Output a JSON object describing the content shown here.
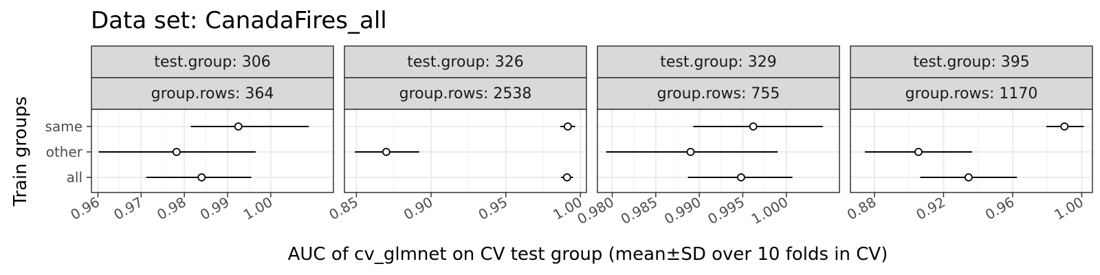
{
  "title": "Data set: CanadaFires_all",
  "xlabel": "AUC of cv_glmnet on CV test group (mean±SD over 10 folds in CV)",
  "ylabel": "Train groups",
  "colors": {
    "strip_fill": "#d9d9d9",
    "strip_border": "#333333",
    "grid_major": "#ebebeb",
    "grid_minor": "#f5f5f5",
    "point": "#000000"
  },
  "chart_data": {
    "type": "scatter",
    "categories": [
      "all",
      "other",
      "same"
    ],
    "panels": [
      {
        "strip_top": "test.group: 306",
        "strip_bottom": "group.rows: 364",
        "xlim": [
          0.9585,
          1.0145
        ],
        "ticks": [
          0.96,
          0.97,
          0.98,
          0.99,
          1.0
        ],
        "tick_labels": [
          "0.96",
          "0.97",
          "0.98",
          "0.99",
          "1.00"
        ],
        "points": [
          {
            "group": "same",
            "mean": 0.9925,
            "lo": 0.9815,
            "hi": 1.0088
          },
          {
            "group": "other",
            "mean": 0.9782,
            "lo": 0.9602,
            "hi": 0.9965
          },
          {
            "group": "all",
            "mean": 0.984,
            "lo": 0.9712,
            "hi": 0.9955
          }
        ]
      },
      {
        "strip_top": "test.group: 326",
        "strip_bottom": "group.rows: 2538",
        "xlim": [
          0.842,
          1.004
        ],
        "ticks": [
          0.85,
          0.9,
          0.95,
          1.0
        ],
        "tick_labels": [
          "0.85",
          "0.90",
          "0.95",
          "1.00"
        ],
        "points": [
          {
            "group": "same",
            "mean": 0.9915,
            "lo": 0.9865,
            "hi": 0.9965
          },
          {
            "group": "other",
            "mean": 0.87,
            "lo": 0.849,
            "hi": 0.892
          },
          {
            "group": "all",
            "mean": 0.991,
            "lo": 0.987,
            "hi": 0.995
          }
        ]
      },
      {
        "strip_top": "test.group: 329",
        "strip_bottom": "group.rows: 755",
        "xlim": [
          0.9783,
          1.0061
        ],
        "ticks": [
          0.98,
          0.985,
          0.99,
          0.995,
          1.0
        ],
        "tick_labels": [
          "0.980",
          "0.985",
          "0.990",
          "0.995",
          "1.000"
        ],
        "points": [
          {
            "group": "same",
            "mean": 0.9962,
            "lo": 0.9893,
            "hi": 1.0042
          },
          {
            "group": "other",
            "mean": 0.989,
            "lo": 0.9793,
            "hi": 0.999
          },
          {
            "group": "all",
            "mean": 0.9948,
            "lo": 0.9887,
            "hi": 1.0007
          }
        ]
      },
      {
        "strip_top": "test.group: 395",
        "strip_bottom": "group.rows: 1170",
        "xlim": [
          0.8661,
          1.0062
        ],
        "ticks": [
          0.88,
          0.92,
          0.96,
          1.0
        ],
        "tick_labels": [
          "0.88",
          "0.92",
          "0.96",
          "1.00"
        ],
        "points": [
          {
            "group": "same",
            "mean": 0.99,
            "lo": 0.9795,
            "hi": 1.0012
          },
          {
            "group": "other",
            "mean": 0.9055,
            "lo": 0.8745,
            "hi": 0.9365
          },
          {
            "group": "all",
            "mean": 0.9345,
            "lo": 0.9065,
            "hi": 0.9625
          }
        ]
      }
    ]
  }
}
